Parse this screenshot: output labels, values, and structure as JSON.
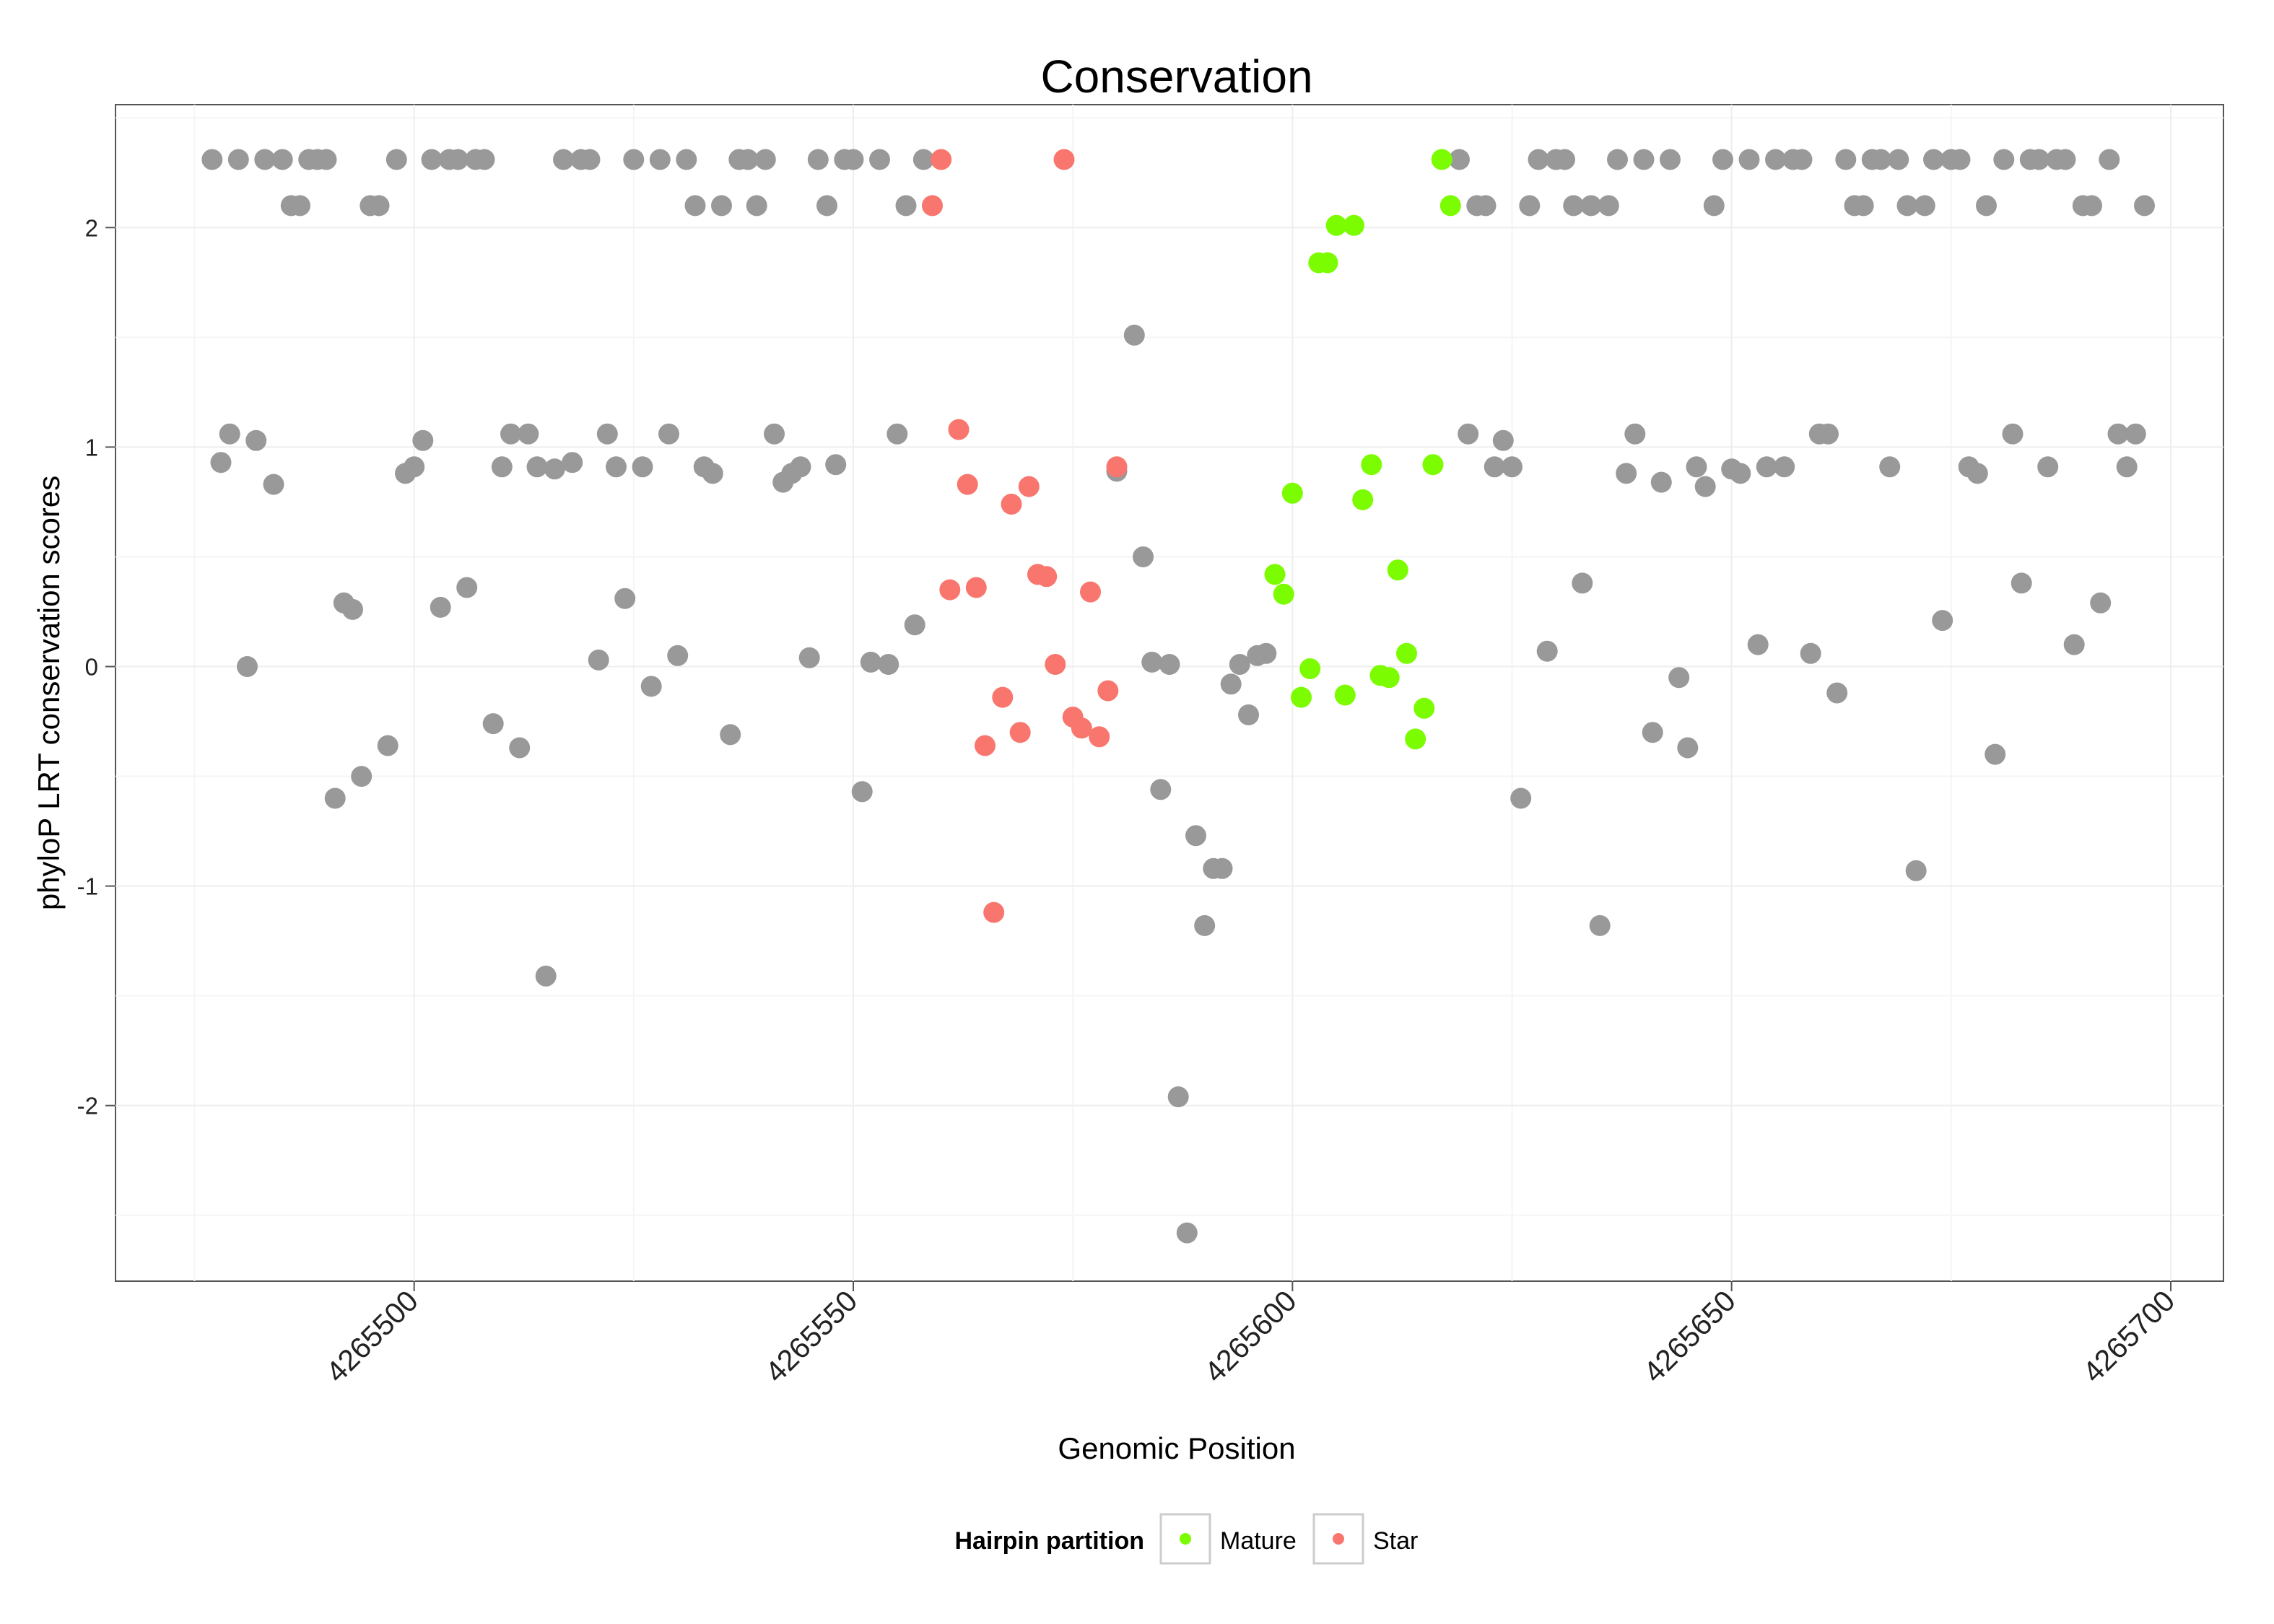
{
  "chart_data": {
    "type": "scatter",
    "title": "Conservation",
    "xlabel": "Genomic Position",
    "ylabel": "phyloP LRT conservation scores",
    "xlim": [
      4265466,
      4265706
    ],
    "ylim": [
      -2.8,
      2.56
    ],
    "x_ticks": [
      4265500,
      4265550,
      4265600,
      4265650,
      4265700
    ],
    "x_tick_labels": [
      "4265500",
      "4265550",
      "4265600",
      "4265650",
      "4265700"
    ],
    "y_ticks": [
      -2,
      -1,
      0,
      1,
      2
    ],
    "y_tick_labels": [
      "-2",
      "-1",
      "0",
      "1",
      "2"
    ],
    "grid": true,
    "legend": {
      "title": "Hairpin partition",
      "placement": "bottom",
      "entries": [
        {
          "label": "Mature",
          "color": "#7CFC00"
        },
        {
          "label": "Star",
          "color": "#F8766D"
        }
      ]
    },
    "colors": {
      "other": "#999999",
      "Mature": "#7CFC00",
      "Star": "#F8766D"
    },
    "series": [
      {
        "name": "Other",
        "points": [
          [
            4265477,
            2.31
          ],
          [
            4265478,
            0.93
          ],
          [
            4265479,
            1.06
          ],
          [
            4265480,
            2.31
          ],
          [
            4265481,
            0.0
          ],
          [
            4265482,
            1.03
          ],
          [
            4265483,
            2.31
          ],
          [
            4265484,
            0.83
          ],
          [
            4265485,
            2.31
          ],
          [
            4265486,
            2.1
          ],
          [
            4265487,
            2.1
          ],
          [
            4265488,
            2.31
          ],
          [
            4265489,
            2.31
          ],
          [
            4265490,
            2.31
          ],
          [
            4265491,
            -0.6
          ],
          [
            4265492,
            0.29
          ],
          [
            4265493,
            0.26
          ],
          [
            4265494,
            -0.5
          ],
          [
            4265495,
            2.1
          ],
          [
            4265496,
            2.1
          ],
          [
            4265497,
            -0.36
          ],
          [
            4265498,
            2.31
          ],
          [
            4265499,
            0.88
          ],
          [
            4265500,
            0.91
          ],
          [
            4265501,
            1.03
          ],
          [
            4265502,
            2.31
          ],
          [
            4265503,
            0.27
          ],
          [
            4265504,
            2.31
          ],
          [
            4265505,
            2.31
          ],
          [
            4265506,
            0.36
          ],
          [
            4265507,
            2.31
          ],
          [
            4265508,
            2.31
          ],
          [
            4265509,
            -0.26
          ],
          [
            4265510,
            0.91
          ],
          [
            4265511,
            1.06
          ],
          [
            4265512,
            -0.37
          ],
          [
            4265513,
            1.06
          ],
          [
            4265514,
            0.91
          ],
          [
            4265515,
            -1.41
          ],
          [
            4265516,
            0.9
          ],
          [
            4265517,
            2.31
          ],
          [
            4265518,
            0.93
          ],
          [
            4265519,
            2.31
          ],
          [
            4265520,
            2.31
          ],
          [
            4265521,
            0.03
          ],
          [
            4265522,
            1.06
          ],
          [
            4265523,
            0.91
          ],
          [
            4265524,
            0.31
          ],
          [
            4265525,
            2.31
          ],
          [
            4265526,
            0.91
          ],
          [
            4265527,
            -0.09
          ],
          [
            4265528,
            2.31
          ],
          [
            4265529,
            1.06
          ],
          [
            4265530,
            0.05
          ],
          [
            4265531,
            2.31
          ],
          [
            4265532,
            2.1
          ],
          [
            4265533,
            0.91
          ],
          [
            4265534,
            0.88
          ],
          [
            4265535,
            2.1
          ],
          [
            4265536,
            -0.31
          ],
          [
            4265537,
            2.31
          ],
          [
            4265538,
            2.31
          ],
          [
            4265539,
            2.1
          ],
          [
            4265540,
            2.31
          ],
          [
            4265541,
            1.06
          ],
          [
            4265542,
            0.84
          ],
          [
            4265543,
            0.88
          ],
          [
            4265544,
            0.91
          ],
          [
            4265545,
            0.04
          ],
          [
            4265546,
            2.31
          ],
          [
            4265547,
            2.1
          ],
          [
            4265548,
            0.92
          ],
          [
            4265549,
            2.31
          ],
          [
            4265550,
            2.31
          ],
          [
            4265551,
            -0.57
          ],
          [
            4265552,
            0.02
          ],
          [
            4265553,
            2.31
          ],
          [
            4265554,
            0.01
          ],
          [
            4265555,
            1.06
          ],
          [
            4265556,
            2.1
          ],
          [
            4265557,
            0.19
          ],
          [
            4265558,
            2.31
          ],
          [
            4265580,
            0.89
          ],
          [
            4265582,
            1.51
          ],
          [
            4265583,
            0.5
          ],
          [
            4265584,
            0.02
          ],
          [
            4265585,
            -0.56
          ],
          [
            4265586,
            0.01
          ],
          [
            4265587,
            -1.96
          ],
          [
            4265588,
            -2.58
          ],
          [
            4265589,
            -0.77
          ],
          [
            4265590,
            -1.18
          ],
          [
            4265591,
            -0.92
          ],
          [
            4265592,
            -0.92
          ],
          [
            4265593,
            -0.08
          ],
          [
            4265594,
            0.01
          ],
          [
            4265595,
            -0.22
          ],
          [
            4265596,
            0.05
          ],
          [
            4265597,
            0.06
          ],
          [
            4265619,
            2.31
          ],
          [
            4265620,
            1.06
          ],
          [
            4265621,
            2.1
          ],
          [
            4265622,
            2.1
          ],
          [
            4265623,
            0.91
          ],
          [
            4265624,
            1.03
          ],
          [
            4265625,
            0.91
          ],
          [
            4265626,
            -0.6
          ],
          [
            4265627,
            2.1
          ],
          [
            4265628,
            2.31
          ],
          [
            4265629,
            0.07
          ],
          [
            4265630,
            2.31
          ],
          [
            4265631,
            2.31
          ],
          [
            4265632,
            2.1
          ],
          [
            4265633,
            0.38
          ],
          [
            4265634,
            2.1
          ],
          [
            4265635,
            -1.18
          ],
          [
            4265636,
            2.1
          ],
          [
            4265637,
            2.31
          ],
          [
            4265638,
            0.88
          ],
          [
            4265639,
            1.06
          ],
          [
            4265640,
            2.31
          ],
          [
            4265641,
            -0.3
          ],
          [
            4265642,
            0.84
          ],
          [
            4265643,
            2.31
          ],
          [
            4265644,
            -0.05
          ],
          [
            4265645,
            -0.37
          ],
          [
            4265646,
            0.91
          ],
          [
            4265647,
            0.82
          ],
          [
            4265648,
            2.1
          ],
          [
            4265649,
            2.31
          ],
          [
            4265650,
            0.9
          ],
          [
            4265651,
            0.88
          ],
          [
            4265652,
            2.31
          ],
          [
            4265653,
            0.1
          ],
          [
            4265654,
            0.91
          ],
          [
            4265655,
            2.31
          ],
          [
            4265656,
            0.91
          ],
          [
            4265657,
            2.31
          ],
          [
            4265658,
            2.31
          ],
          [
            4265659,
            0.06
          ],
          [
            4265660,
            1.06
          ],
          [
            4265661,
            1.06
          ],
          [
            4265662,
            -0.12
          ],
          [
            4265663,
            2.31
          ],
          [
            4265664,
            2.1
          ],
          [
            4265665,
            2.1
          ],
          [
            4265666,
            2.31
          ],
          [
            4265667,
            2.31
          ],
          [
            4265668,
            0.91
          ],
          [
            4265669,
            2.31
          ],
          [
            4265670,
            2.1
          ],
          [
            4265671,
            -0.93
          ],
          [
            4265672,
            2.1
          ],
          [
            4265673,
            2.31
          ],
          [
            4265674,
            0.21
          ],
          [
            4265675,
            2.31
          ],
          [
            4265676,
            2.31
          ],
          [
            4265677,
            0.91
          ],
          [
            4265678,
            0.88
          ],
          [
            4265679,
            2.1
          ],
          [
            4265680,
            -0.4
          ],
          [
            4265681,
            2.31
          ],
          [
            4265682,
            1.06
          ],
          [
            4265683,
            0.38
          ],
          [
            4265684,
            2.31
          ],
          [
            4265685,
            2.31
          ],
          [
            4265686,
            0.91
          ],
          [
            4265687,
            2.31
          ],
          [
            4265688,
            2.31
          ],
          [
            4265689,
            0.1
          ],
          [
            4265690,
            2.1
          ],
          [
            4265691,
            2.1
          ],
          [
            4265692,
            0.29
          ],
          [
            4265693,
            2.31
          ],
          [
            4265694,
            1.06
          ],
          [
            4265695,
            0.91
          ],
          [
            4265696,
            1.06
          ],
          [
            4265697,
            2.1
          ]
        ]
      },
      {
        "name": "Star",
        "points": [
          [
            4265559,
            2.1
          ],
          [
            4265560,
            2.31
          ],
          [
            4265561,
            0.35
          ],
          [
            4265562,
            1.08
          ],
          [
            4265563,
            0.83
          ],
          [
            4265564,
            0.36
          ],
          [
            4265565,
            -0.36
          ],
          [
            4265566,
            -1.12
          ],
          [
            4265567,
            -0.14
          ],
          [
            4265568,
            0.74
          ],
          [
            4265569,
            -0.3
          ],
          [
            4265570,
            0.82
          ],
          [
            4265571,
            0.42
          ],
          [
            4265572,
            0.41
          ],
          [
            4265573,
            0.01
          ],
          [
            4265574,
            2.31
          ],
          [
            4265575,
            -0.23
          ],
          [
            4265576,
            -0.28
          ],
          [
            4265577,
            0.34
          ],
          [
            4265578,
            -0.32
          ],
          [
            4265579,
            -0.11
          ],
          [
            4265580,
            0.91
          ]
        ]
      },
      {
        "name": "Mature",
        "points": [
          [
            4265598,
            0.42
          ],
          [
            4265599,
            0.33
          ],
          [
            4265600,
            0.79
          ],
          [
            4265601,
            -0.14
          ],
          [
            4265602,
            -0.01
          ],
          [
            4265603,
            1.84
          ],
          [
            4265604,
            1.84
          ],
          [
            4265605,
            2.01
          ],
          [
            4265606,
            -0.13
          ],
          [
            4265607,
            2.01
          ],
          [
            4265608,
            0.76
          ],
          [
            4265609,
            0.92
          ],
          [
            4265610,
            -0.04
          ],
          [
            4265611,
            -0.05
          ],
          [
            4265612,
            0.44
          ],
          [
            4265613,
            0.06
          ],
          [
            4265614,
            -0.33
          ],
          [
            4265615,
            -0.19
          ],
          [
            4265616,
            0.92
          ],
          [
            4265617,
            2.31
          ],
          [
            4265618,
            2.1
          ]
        ]
      }
    ]
  }
}
